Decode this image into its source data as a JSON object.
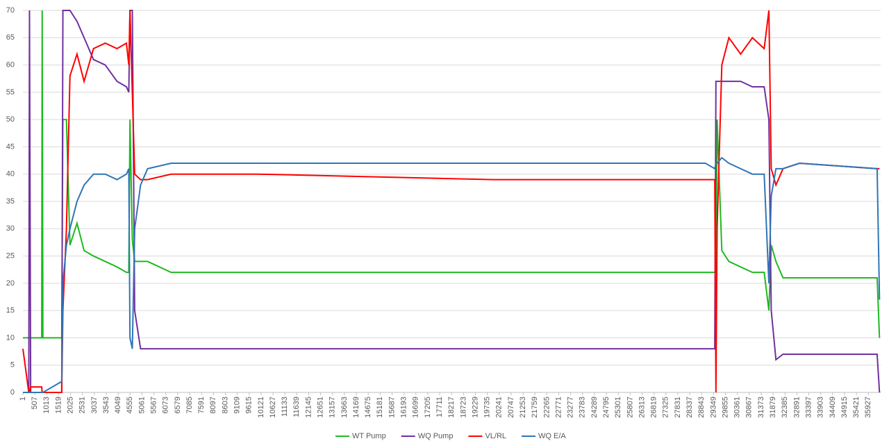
{
  "chart_data": {
    "type": "line",
    "x": [
      1,
      250,
      280,
      330,
      800,
      820,
      850,
      1650,
      1700,
      1850,
      2000,
      2300,
      2600,
      3000,
      3500,
      4000,
      4400,
      4500,
      4550,
      4650,
      4750,
      5000,
      5300,
      6300,
      10000,
      20000,
      29000,
      29400,
      29450,
      29500,
      29700,
      30000,
      30500,
      31000,
      31500,
      31700,
      31800,
      32000,
      32300,
      33000,
      36300,
      36400
    ],
    "series": [
      {
        "name": "WT Pump",
        "color": "#1eb91e",
        "values": [
          10,
          10,
          10,
          10,
          10,
          70,
          10,
          10,
          50,
          50,
          27,
          31,
          26,
          25,
          24,
          23,
          22,
          22,
          50,
          28,
          24,
          24,
          24,
          22,
          22,
          22,
          22,
          22,
          22,
          50,
          26,
          24,
          23,
          22,
          22,
          15,
          27,
          24,
          21,
          21,
          21,
          10
        ]
      },
      {
        "name": "WQ Pump",
        "color": "#7030a0",
        "values": [
          0,
          0,
          70,
          0,
          0,
          0,
          0,
          0,
          70,
          70,
          70,
          68,
          65,
          61,
          60,
          57,
          56,
          55,
          70,
          70,
          15,
          8,
          8,
          8,
          8,
          8,
          8,
          8,
          57,
          57,
          57,
          57,
          57,
          56,
          56,
          50,
          15,
          6,
          7,
          7,
          7,
          0
        ]
      },
      {
        "name": "VL/RL",
        "color": "#ff0000",
        "values": [
          8,
          0,
          0,
          1,
          1,
          0,
          0,
          0,
          15,
          30,
          58,
          62,
          57,
          63,
          64,
          63,
          64,
          60,
          70,
          55,
          40,
          39,
          39,
          40,
          40,
          39,
          39,
          39,
          0,
          30,
          60,
          65,
          62,
          65,
          63,
          70,
          41,
          38,
          41,
          42,
          41,
          41
        ]
      },
      {
        "name": "WQ E/A",
        "color": "#2e75b6",
        "values": [
          0,
          0,
          0,
          0,
          0,
          0,
          0,
          2,
          20,
          27,
          30,
          35,
          38,
          40,
          40,
          39,
          40,
          41,
          10,
          8,
          30,
          38,
          41,
          42,
          42,
          42,
          42,
          41,
          42,
          42,
          43,
          42,
          41,
          40,
          40,
          20,
          36,
          41,
          41,
          42,
          41,
          17
        ]
      }
    ],
    "xlim": [
      1,
      36450
    ],
    "xticks": [
      1,
      507,
      1013,
      1519,
      2025,
      2531,
      3037,
      3543,
      4049,
      4555,
      5061,
      5567,
      6073,
      6579,
      7085,
      7591,
      8097,
      8603,
      9109,
      9615,
      10121,
      10627,
      11133,
      11639,
      12145,
      12651,
      13157,
      13663,
      14169,
      14675,
      15181,
      15687,
      16193,
      16699,
      17205,
      17711,
      18217,
      18723,
      19229,
      19735,
      20241,
      20747,
      21253,
      21759,
      22265,
      22771,
      23277,
      23783,
      24289,
      24795,
      25301,
      25807,
      26313,
      26819,
      27325,
      27831,
      28337,
      28843,
      29349,
      29855,
      30361,
      30867,
      31373,
      31879,
      32385,
      32891,
      33397,
      33903,
      34409,
      34915,
      35421,
      35927
    ],
    "ylim": [
      0,
      70
    ],
    "yticks": [
      0,
      5,
      10,
      15,
      20,
      25,
      30,
      35,
      40,
      45,
      50,
      55,
      60,
      65,
      70
    ],
    "grid": true,
    "legend": "bottom"
  }
}
